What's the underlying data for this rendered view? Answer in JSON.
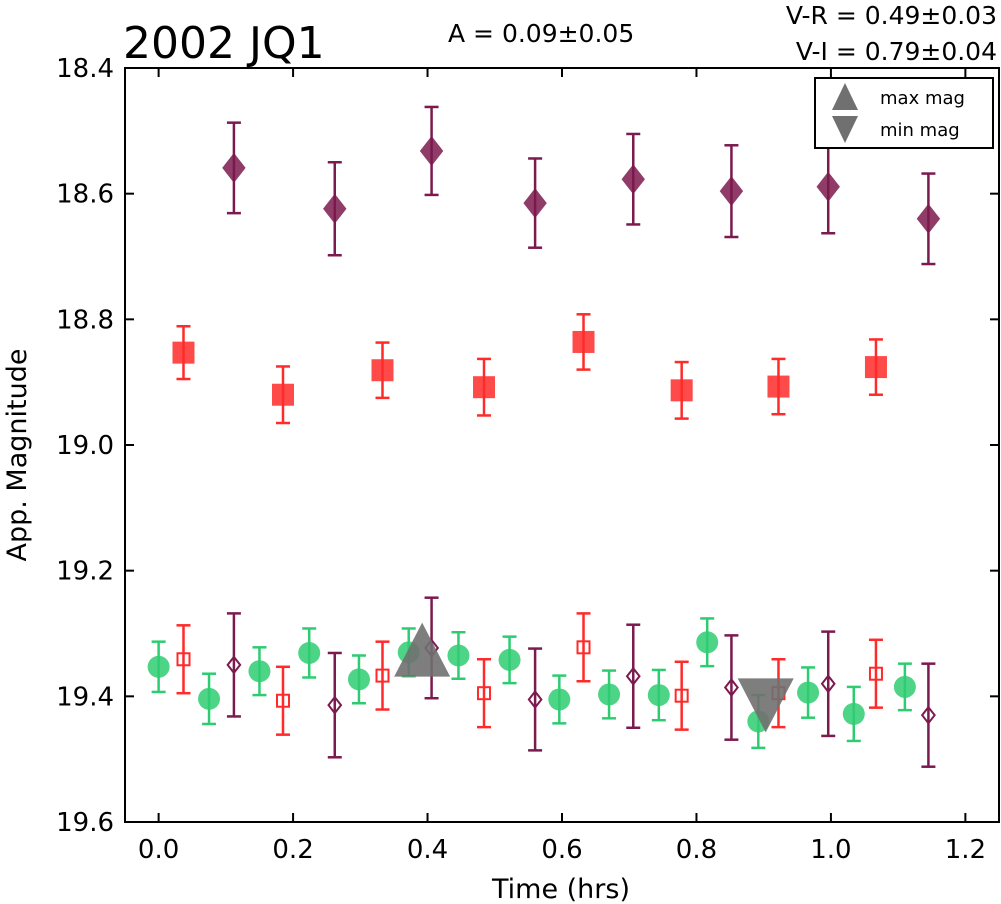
{
  "header": {
    "object_name": "2002 JQ1",
    "amplitude": "A  = 0.09±0.05",
    "color_vr": "V-R = 0.49±0.03",
    "color_vi": "V-I  = 0.79±0.04"
  },
  "legend": {
    "max_label": "max mag",
    "min_label": "min mag",
    "placement": "top-right"
  },
  "colors": {
    "purple": "#7b1a4e",
    "red": "#ff2a2a",
    "green": "#2ecc71",
    "gray": "#707070"
  },
  "chart_data": {
    "type": "scatter",
    "title": "2002 JQ1",
    "xlabel": "Time (hrs)",
    "ylabel": "App. Magnitude",
    "xlim": [
      -0.05,
      1.25
    ],
    "ylim": [
      18.4,
      19.6
    ],
    "y_inverted": true,
    "x_ticks": [
      0.0,
      0.2,
      0.4,
      0.6,
      0.8,
      1.0,
      1.2
    ],
    "x_tick_labels": [
      "0.0",
      "0.2",
      "0.4",
      "0.6",
      "0.8",
      "1.0",
      "1.2"
    ],
    "y_ticks": [
      18.4,
      18.6,
      18.8,
      19.0,
      19.2,
      19.4,
      19.6
    ],
    "y_tick_labels": [
      "18.4",
      "18.6",
      "18.8",
      "19.0",
      "19.2",
      "19.4",
      "19.6"
    ],
    "grid": false,
    "series": [
      {
        "marker": "diamond",
        "filled": true,
        "color": "#7b1a4e",
        "points": [
          {
            "x": 0.112,
            "y": 18.559,
            "err": 0.072
          },
          {
            "x": 0.262,
            "y": 18.624,
            "err": 0.074
          },
          {
            "x": 0.406,
            "y": 18.532,
            "err": 0.07
          },
          {
            "x": 0.56,
            "y": 18.615,
            "err": 0.071
          },
          {
            "x": 0.706,
            "y": 18.577,
            "err": 0.072
          },
          {
            "x": 0.852,
            "y": 18.596,
            "err": 0.073
          },
          {
            "x": 0.996,
            "y": 18.589,
            "err": 0.074
          },
          {
            "x": 1.145,
            "y": 18.64,
            "err": 0.072
          }
        ]
      },
      {
        "marker": "square",
        "filled": true,
        "color": "#ff2a2a",
        "points": [
          {
            "x": 0.037,
            "y": 18.853,
            "err": 0.042
          },
          {
            "x": 0.185,
            "y": 18.92,
            "err": 0.045
          },
          {
            "x": 0.333,
            "y": 18.881,
            "err": 0.044
          },
          {
            "x": 0.484,
            "y": 18.908,
            "err": 0.045
          },
          {
            "x": 0.632,
            "y": 18.836,
            "err": 0.044
          },
          {
            "x": 0.778,
            "y": 18.913,
            "err": 0.045
          },
          {
            "x": 0.922,
            "y": 18.907,
            "err": 0.044
          },
          {
            "x": 1.067,
            "y": 18.876,
            "err": 0.044
          }
        ]
      },
      {
        "marker": "circle",
        "filled": true,
        "color": "#2ecc71",
        "points": [
          {
            "x": 0.0,
            "y": 19.353,
            "err": 0.04
          },
          {
            "x": 0.075,
            "y": 19.404,
            "err": 0.04
          },
          {
            "x": 0.15,
            "y": 19.36,
            "err": 0.038
          },
          {
            "x": 0.224,
            "y": 19.331,
            "err": 0.039
          },
          {
            "x": 0.298,
            "y": 19.373,
            "err": 0.038
          },
          {
            "x": 0.372,
            "y": 19.33,
            "err": 0.038
          },
          {
            "x": 0.446,
            "y": 19.335,
            "err": 0.037
          },
          {
            "x": 0.522,
            "y": 19.342,
            "err": 0.037
          },
          {
            "x": 0.596,
            "y": 19.405,
            "err": 0.038
          },
          {
            "x": 0.67,
            "y": 19.397,
            "err": 0.038
          },
          {
            "x": 0.744,
            "y": 19.398,
            "err": 0.04
          },
          {
            "x": 0.816,
            "y": 19.314,
            "err": 0.038
          },
          {
            "x": 0.892,
            "y": 19.44,
            "err": 0.042
          },
          {
            "x": 0.966,
            "y": 19.394,
            "err": 0.04
          },
          {
            "x": 1.034,
            "y": 19.428,
            "err": 0.043
          },
          {
            "x": 1.11,
            "y": 19.385,
            "err": 0.037
          }
        ]
      },
      {
        "marker": "square",
        "filled": false,
        "color": "#ff2a2a",
        "points": [
          {
            "x": 0.037,
            "y": 19.341,
            "err": 0.054
          },
          {
            "x": 0.185,
            "y": 19.407,
            "err": 0.054
          },
          {
            "x": 0.333,
            "y": 19.367,
            "err": 0.054
          },
          {
            "x": 0.484,
            "y": 19.395,
            "err": 0.054
          },
          {
            "x": 0.632,
            "y": 19.322,
            "err": 0.054
          },
          {
            "x": 0.778,
            "y": 19.399,
            "err": 0.054
          },
          {
            "x": 0.922,
            "y": 19.395,
            "err": 0.054
          },
          {
            "x": 1.067,
            "y": 19.364,
            "err": 0.054
          }
        ]
      },
      {
        "marker": "diamond",
        "filled": false,
        "color": "#7b1a4e",
        "points": [
          {
            "x": 0.112,
            "y": 19.35,
            "err": 0.082
          },
          {
            "x": 0.262,
            "y": 19.414,
            "err": 0.083
          },
          {
            "x": 0.406,
            "y": 19.323,
            "err": 0.08
          },
          {
            "x": 0.56,
            "y": 19.405,
            "err": 0.081
          },
          {
            "x": 0.706,
            "y": 19.368,
            "err": 0.082
          },
          {
            "x": 0.852,
            "y": 19.386,
            "err": 0.083
          },
          {
            "x": 0.996,
            "y": 19.38,
            "err": 0.083
          },
          {
            "x": 1.145,
            "y": 19.43,
            "err": 0.082
          }
        ]
      }
    ],
    "annotations": [
      {
        "type": "max_mag",
        "marker": "triangle-up",
        "x": 0.392,
        "y": 19.33
      },
      {
        "type": "min_mag",
        "marker": "triangle-down",
        "x": 0.903,
        "y": 19.41
      }
    ]
  }
}
